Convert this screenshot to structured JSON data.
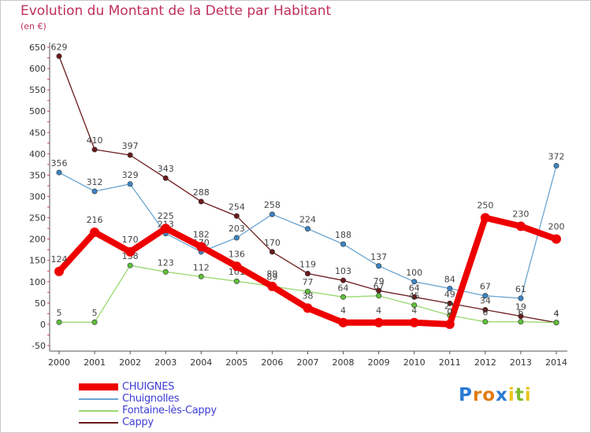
{
  "title": "Evolution du Montant de la Dette par Habitant",
  "unit": "(en €)",
  "chart_data": {
    "type": "line",
    "categories": [
      "2000",
      "2001",
      "2002",
      "2003",
      "2004",
      "2005",
      "2006",
      "2007",
      "2008",
      "2009",
      "2010",
      "2011",
      "2012",
      "2013",
      "2014"
    ],
    "ylim": [
      -50,
      650
    ],
    "yticks": [
      -50,
      0,
      50,
      100,
      150,
      200,
      250,
      300,
      350,
      400,
      450,
      500,
      550,
      600,
      650
    ],
    "grid": false,
    "legend_placement": "bottom-left",
    "series": [
      {
        "name": "Cappy",
        "color": "#6b1a1a",
        "values": [
          629,
          410,
          397,
          343,
          288,
          254,
          170,
          119,
          103,
          79,
          64,
          49,
          34,
          19,
          4
        ]
      },
      {
        "name": "Fontaine-lès-Cappy",
        "color": "#99d971",
        "dot": "#5fbf3a",
        "values": [
          5,
          5,
          138,
          123,
          112,
          101,
          89,
          77,
          64,
          67,
          45,
          21,
          6,
          6,
          4
        ]
      },
      {
        "name": "Chuignolles",
        "color": "#6aa5d1",
        "dot": "#3d84c2",
        "values": [
          356,
          312,
          329,
          213,
          170,
          203,
          258,
          224,
          188,
          137,
          100,
          84,
          67,
          61,
          372
        ]
      },
      {
        "name": "CHUIGNES",
        "color": "#ee0000",
        "values": [
          124,
          216,
          170,
          225,
          182,
          136,
          89,
          38,
          4,
          4,
          4,
          0,
          250,
          230,
          200
        ]
      }
    ]
  },
  "legend": [
    {
      "label": "CHUIGNES",
      "color": "#ee0000"
    },
    {
      "label": "Chuignolles",
      "color": "#6aa5d1"
    },
    {
      "label": "Fontaine-lès-Cappy",
      "color": "#99d971"
    },
    {
      "label": "Cappy",
      "color": "#6b1a1a"
    }
  ],
  "logo": {
    "letters": [
      "P",
      "r",
      "o",
      "x",
      "i",
      "t",
      "i"
    ],
    "colors": [
      "#2a7bd4",
      "#e07b12",
      "#e07b12",
      "#2a7bd4",
      "#e8c41b",
      "#7bbd2d",
      "#e8c41b"
    ]
  }
}
